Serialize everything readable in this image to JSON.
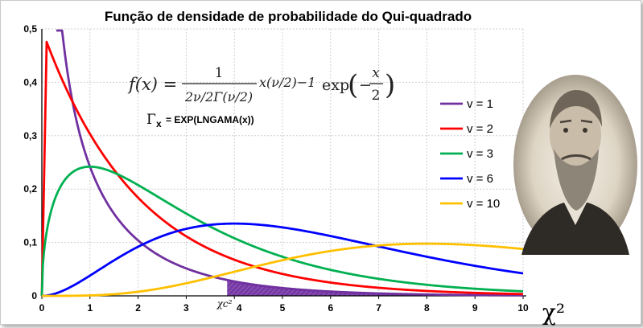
{
  "chart_data": {
    "type": "line",
    "title": "Função de densidade de probabilidade do Qui-quadrado",
    "xlabel": "χ²",
    "ylabel": "",
    "xlim": [
      0,
      10
    ],
    "ylim": [
      0,
      0.5
    ],
    "x_ticks": [
      "0",
      "1",
      "2",
      "3",
      "4",
      "5",
      "6",
      "7",
      "8",
      "9",
      "10"
    ],
    "y_ticks": [
      "0",
      "0,1",
      "0,2",
      "0,3",
      "0,4",
      "0,5"
    ],
    "grid": true,
    "legend_position": "right",
    "critical_label": "χc²",
    "critical_value": 3.85,
    "shaded_region": [
      3.85,
      10
    ],
    "formula": {
      "lhs": "f(x) =",
      "numerator": "1",
      "denominator": "2ν/2Γ(ν/2)",
      "power": "x(ν/2)−1",
      "exp_text": "exp",
      "exp_arg_num": "x",
      "exp_arg_den": "2"
    },
    "gamma_note": {
      "symbol": "Γ",
      "sub": "x",
      "text": "= EXP(LNGAMA(x))"
    },
    "series": [
      {
        "name": "v = 1",
        "dof": 1,
        "color": "#7030a0"
      },
      {
        "name": "v = 2",
        "dof": 2,
        "color": "#ff0000"
      },
      {
        "name": "v = 3",
        "dof": 3,
        "color": "#00b050"
      },
      {
        "name": "v = 6",
        "dof": 6,
        "color": "#0000ff"
      },
      {
        "name": "v = 10",
        "dof": 10,
        "color": "#ffc000"
      }
    ]
  },
  "portrait": {
    "name": "portrait"
  }
}
